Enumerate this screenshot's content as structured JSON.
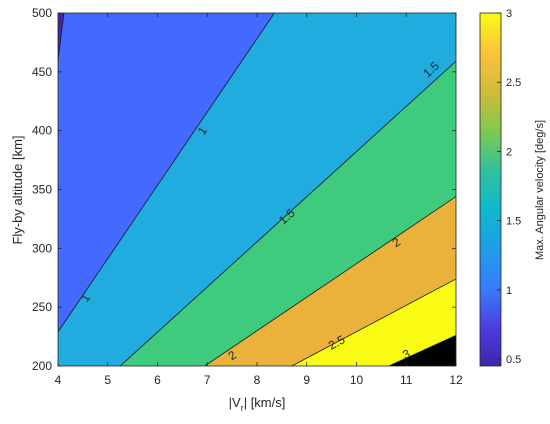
{
  "chart_data": {
    "type": "contour",
    "title": "",
    "xlabel": "|V_r| [km/s]",
    "xlabel_main": "|V",
    "xlabel_sub": "r",
    "xlabel_rest": "| [km/s]",
    "ylabel": "Fly-by altitude [km]",
    "colorbar_label": "Max. Angular velocity [deg/s]",
    "xlim": [
      4,
      12
    ],
    "ylim": [
      200,
      500
    ],
    "clim": [
      0.45,
      3.0
    ],
    "x_ticks": [
      4,
      5,
      6,
      7,
      8,
      9,
      10,
      11,
      12
    ],
    "x_tick_labels": [
      "4",
      "5",
      "6",
      "7",
      "8",
      "9",
      "10",
      "11",
      "12"
    ],
    "y_ticks": [
      200,
      250,
      300,
      350,
      400,
      450,
      500
    ],
    "y_tick_labels": [
      "200",
      "250",
      "300",
      "350",
      "400",
      "450",
      "500"
    ],
    "colorbar_ticks": [
      0.5,
      1,
      1.5,
      2,
      2.5,
      3
    ],
    "colorbar_tick_labels": [
      "0.5",
      "1",
      "1.5",
      "2",
      "2.5",
      "3"
    ],
    "levels": [
      {
        "value": 0.5,
        "label": "",
        "line": [
          [
            4,
            460
          ],
          [
            4.12,
            500
          ]
        ]
      },
      {
        "value": 1,
        "label": "1",
        "line": [
          [
            4,
            229
          ],
          [
            8.35,
            500
          ]
        ],
        "label_at": [
          6.9,
          400
        ]
      },
      {
        "value": 1.5,
        "label": "1.5",
        "line": [
          [
            5.25,
            200
          ],
          [
            12,
            459
          ]
        ],
        "label_at": [
          8.6,
          327
        ]
      },
      {
        "value": 2,
        "label": "2",
        "line": [
          [
            6.95,
            200
          ],
          [
            12,
            344
          ]
        ],
        "label_at": [
          10.8,
          305
        ]
      },
      {
        "value": 2.5,
        "label": "2.5",
        "line": [
          [
            8.7,
            200
          ],
          [
            12,
            274
          ]
        ],
        "label_at": [
          9.6,
          220
        ]
      },
      {
        "value": 3,
        "label": "3",
        "line": [
          [
            10.65,
            200
          ],
          [
            12,
            226
          ]
        ],
        "label_at": [
          11.0,
          210
        ]
      }
    ],
    "label_extras": [
      {
        "value": 1,
        "label": "1",
        "label_at": [
          4.55,
          258
        ]
      },
      {
        "value": 1.5,
        "label": "1.5",
        "label_at": [
          11.5,
          452
        ]
      },
      {
        "value": 2,
        "label": "2",
        "label_at": [
          7.5,
          209
        ]
      }
    ],
    "fill_colors": [
      "#3e26a8",
      "#4369ff",
      "#20acdf",
      "#3ecb7e",
      "#eab23a",
      "#f9fb14"
    ],
    "colormap": [
      "#3e26a8",
      "#4a3fe0",
      "#3a7cfc",
      "#1f9de8",
      "#10b8cd",
      "#31c29b",
      "#81c94e",
      "#d1bc38",
      "#fcc33b",
      "#f9fb14"
    ]
  }
}
